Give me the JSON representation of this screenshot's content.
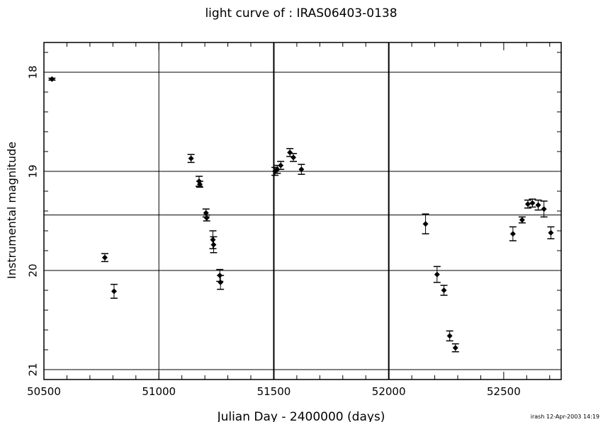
{
  "chart_data": {
    "type": "scatter",
    "title": "light curve of : IRAS06403-0138",
    "xlabel": "Julian Day - 2400000 (days)",
    "ylabel": "Instrumental magnitude",
    "footer": "irash 12-Apr-2003 14:19",
    "xlim": [
      50500,
      52750
    ],
    "ylim": [
      21.1,
      17.7
    ],
    "y_inverted": true,
    "grid": true,
    "x_ticks": [
      50500,
      51000,
      51500,
      52000,
      52500
    ],
    "y_ticks": [
      18,
      19,
      20,
      21
    ],
    "x_gridlines": [
      51000,
      51500,
      52000
    ],
    "x_gridlines_bold": [
      51500,
      52000
    ],
    "y_gridlines": [
      18,
      19,
      19.44,
      20,
      21
    ],
    "points": [
      {
        "x": 50535,
        "y": 18.07,
        "err": 0.01
      },
      {
        "x": 50765,
        "y": 19.87,
        "err": 0.04
      },
      {
        "x": 50805,
        "y": 20.21,
        "err": 0.07
      },
      {
        "x": 51140,
        "y": 18.87,
        "err": 0.04
      },
      {
        "x": 51175,
        "y": 19.1,
        "err": 0.05
      },
      {
        "x": 51178,
        "y": 19.13,
        "err": 0.03
      },
      {
        "x": 51205,
        "y": 19.42,
        "err": 0.04
      },
      {
        "x": 51208,
        "y": 19.47,
        "err": 0.03
      },
      {
        "x": 51235,
        "y": 19.69,
        "err": 0.09
      },
      {
        "x": 51238,
        "y": 19.74,
        "err": 0.08
      },
      {
        "x": 51265,
        "y": 20.05,
        "err": 0.06
      },
      {
        "x": 51268,
        "y": 20.12,
        "err": 0.07
      },
      {
        "x": 51505,
        "y": 19.0,
        "err": 0.04
      },
      {
        "x": 51515,
        "y": 18.98,
        "err": 0.04
      },
      {
        "x": 51530,
        "y": 18.94,
        "err": 0.04
      },
      {
        "x": 51570,
        "y": 18.81,
        "err": 0.04
      },
      {
        "x": 51585,
        "y": 18.86,
        "err": 0.04
      },
      {
        "x": 51620,
        "y": 18.98,
        "err": 0.05
      },
      {
        "x": 52160,
        "y": 19.53,
        "err": 0.1
      },
      {
        "x": 52210,
        "y": 20.04,
        "err": 0.08
      },
      {
        "x": 52240,
        "y": 20.2,
        "err": 0.05
      },
      {
        "x": 52265,
        "y": 20.66,
        "err": 0.05
      },
      {
        "x": 52290,
        "y": 20.78,
        "err": 0.04
      },
      {
        "x": 52540,
        "y": 19.63,
        "err": 0.07
      },
      {
        "x": 52580,
        "y": 19.49,
        "err": 0.03
      },
      {
        "x": 52605,
        "y": 19.33,
        "err": 0.04
      },
      {
        "x": 52625,
        "y": 19.32,
        "err": 0.04
      },
      {
        "x": 52650,
        "y": 19.34,
        "err": 0.05
      },
      {
        "x": 52675,
        "y": 19.38,
        "err": 0.08
      },
      {
        "x": 52705,
        "y": 19.62,
        "err": 0.06
      }
    ]
  }
}
